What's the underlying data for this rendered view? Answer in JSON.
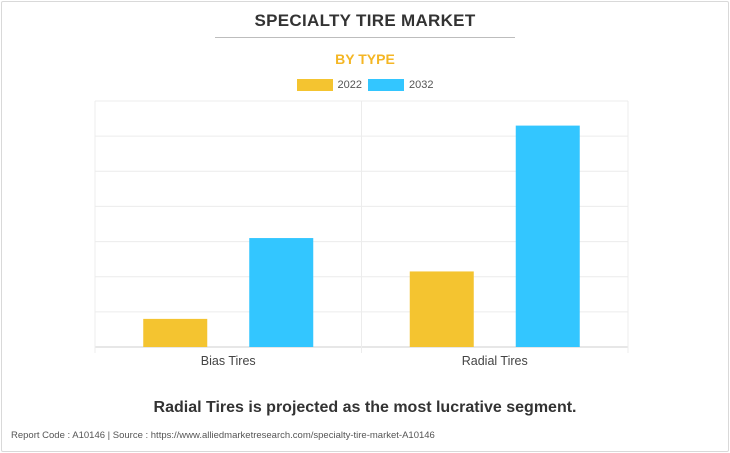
{
  "header": {
    "title": "SPECIALTY TIRE MARKET",
    "subtitle": "BY TYPE"
  },
  "chart_data": {
    "type": "bar",
    "title": "SPECIALTY TIRE MARKET",
    "subtitle": "BY TYPE",
    "categories": [
      "Bias Tires",
      "Radial Tires"
    ],
    "series": [
      {
        "name": "2022",
        "values": [
          0.8,
          2.15
        ],
        "color": "#f4c430"
      },
      {
        "name": "2032",
        "values": [
          3.1,
          6.3
        ],
        "color": "#33c6ff"
      }
    ],
    "ylim": [
      0,
      7
    ],
    "xlabel": "",
    "ylabel": "",
    "grid": true,
    "legend_position": "top-center"
  },
  "conclusion": "Radial Tires is projected as the most lucrative segment.",
  "footer": "Report Code : A10146  |  Source : https://www.alliedmarketresearch.com/specialty-tire-market-A10146"
}
